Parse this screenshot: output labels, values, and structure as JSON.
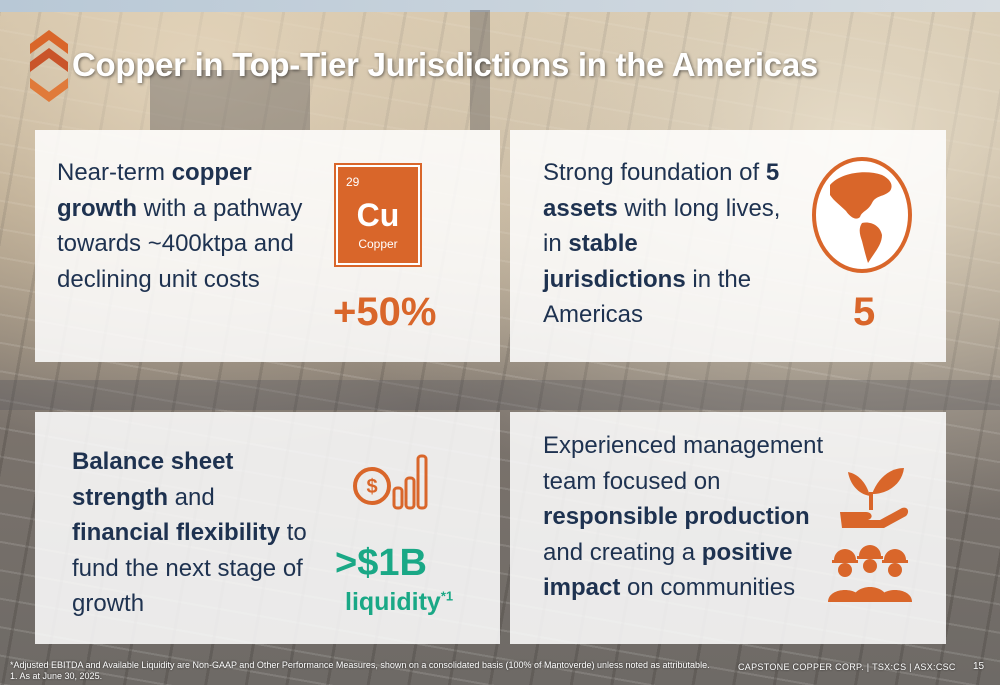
{
  "slide": {
    "title": "Copper in Top-Tier Jurisdictions in the Americas",
    "page_number": "15",
    "footer": "CAPSTONE COPPER CORP. | TSX:CS | ASX:CSC",
    "footnote_1": "*Adjusted EBITDA and Available Liquidity are Non-GAAP and Other Performance Measures, shown on a consolidated basis (100% of Mantoverde) unless noted as attributable.",
    "footnote_2": "1. As at June 30, 2025."
  },
  "panels": {
    "growth": {
      "t1": "Near-term ",
      "t2": "copper growth",
      "t3": " with a pathway towards ~400ktpa and declining unit costs",
      "value": "+50%",
      "element": {
        "number": "29",
        "symbol": "Cu",
        "name": "Copper"
      },
      "icon": "copper-element-tile"
    },
    "assets": {
      "t1": "Strong foundation of ",
      "t2": "5 assets",
      "t3": " with long lives, in ",
      "t4": "stable jurisdictions",
      "t5": " in the Americas",
      "value": "5",
      "icon": "americas-globe-icon"
    },
    "balance": {
      "t1": "Balance sheet strength",
      "t2": " and ",
      "t3": "financial flexibility",
      "t4": " to fund the next stage of growth",
      "value": ">$1B",
      "value_sub": "liquidity",
      "value_sup": "*1",
      "icon": "dollar-growth-chart-icon"
    },
    "management": {
      "t1": "Experienced management team focused on ",
      "t2": "responsible production",
      "t3": " and creating a ",
      "t4": "positive impact",
      "t5": " on communities",
      "icon": "hand-plant-workers-icon"
    }
  },
  "colors": {
    "accent": "#d9662a",
    "green": "#1aa886",
    "text": "#1e3250"
  }
}
